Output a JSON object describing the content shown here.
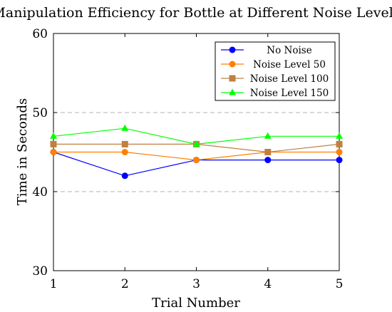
{
  "chart_data": {
    "type": "line",
    "title": "Manipulation Efficiency for Bottle at Different Noise Levels",
    "xlabel": "Trial Number",
    "ylabel": "Time in Seconds",
    "x": [
      1,
      2,
      3,
      4,
      5
    ],
    "xticks": [
      "1",
      "2",
      "3",
      "4",
      "5"
    ],
    "yticks": [
      "30",
      "40",
      "50",
      "60"
    ],
    "xlim": [
      1,
      5
    ],
    "ylim": [
      30,
      60
    ],
    "grid": "horizontal dashed at 40 and 50",
    "legend_position": "top-right",
    "series": [
      {
        "name": "No Noise",
        "values": [
          45,
          42,
          44,
          44,
          44
        ],
        "color": "#0000ff",
        "marker": "circle"
      },
      {
        "name": "Noise Level 50",
        "values": [
          45,
          45,
          44,
          45,
          45
        ],
        "color": "#ff8000",
        "marker": "circle"
      },
      {
        "name": "Noise Level 100",
        "values": [
          46,
          46,
          46,
          45,
          46
        ],
        "color": "#bf8040",
        "marker": "square"
      },
      {
        "name": "Noise Level 150",
        "values": [
          47,
          48,
          46,
          47,
          47
        ],
        "color": "#00ff00",
        "marker": "triangle"
      }
    ]
  }
}
